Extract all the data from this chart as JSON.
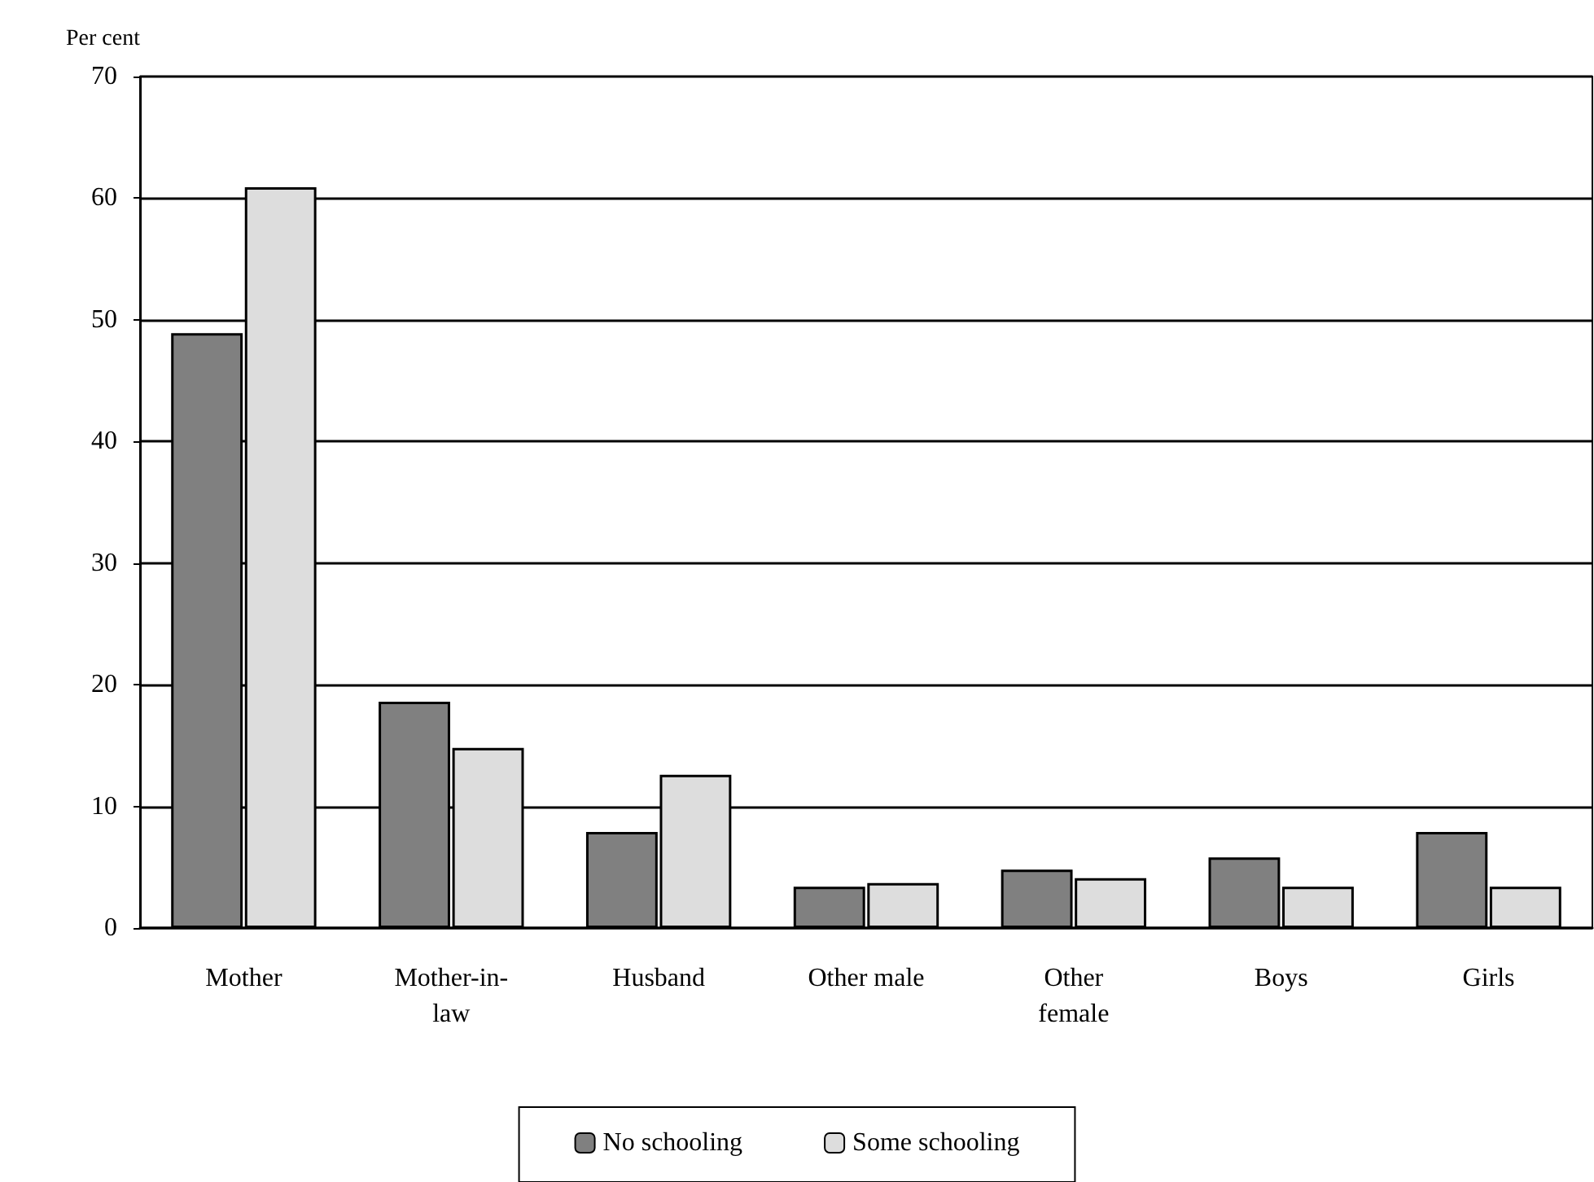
{
  "chart_data": {
    "type": "bar",
    "ylabel": "Per cent",
    "categories": [
      "Mother",
      "Mother-in-law",
      "Husband",
      "Other male",
      "Other female",
      "Boys",
      "Girls"
    ],
    "series": [
      {
        "name": "No schooling",
        "color": "#808080",
        "values": [
          48.9,
          18.6,
          7.9,
          3.4,
          4.8,
          5.8,
          7.9
        ]
      },
      {
        "name": "Some schooling",
        "color": "#dddddd",
        "values": [
          60.9,
          14.8,
          12.6,
          3.7,
          4.1,
          3.4,
          3.4
        ]
      }
    ],
    "ylim": [
      0,
      70
    ],
    "yticks": [
      0,
      10,
      20,
      30,
      40,
      50,
      60,
      70
    ],
    "grid": "y",
    "legend": "bottom"
  }
}
